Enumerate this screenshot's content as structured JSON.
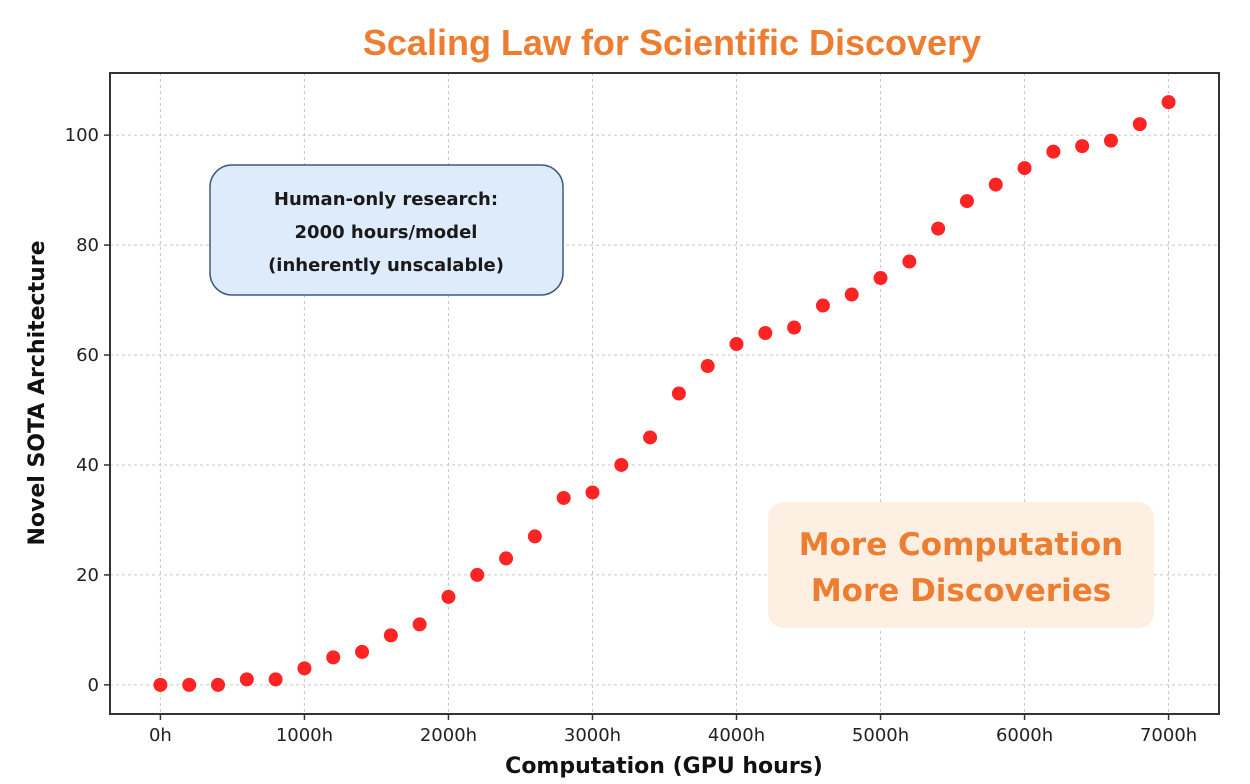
{
  "chart_data": {
    "type": "scatter",
    "title": "Scaling Law for Scientific Discovery",
    "xlabel": "Computation (GPU hours)",
    "ylabel": "Novel SOTA Architecture",
    "x_ticks": [
      0,
      1000,
      2000,
      3000,
      4000,
      5000,
      6000,
      7000
    ],
    "x_tick_labels": [
      "0h",
      "1000h",
      "2000h",
      "3000h",
      "4000h",
      "5000h",
      "6000h",
      "7000h"
    ],
    "y_ticks": [
      0,
      20,
      40,
      60,
      80,
      100
    ],
    "y_tick_labels": [
      "0",
      "20",
      "40",
      "60",
      "80",
      "100"
    ],
    "xlim": [
      -350,
      7350
    ],
    "ylim": [
      -5.3,
      111.3
    ],
    "grid": true,
    "marker_color": "#FF2424",
    "series": [
      {
        "name": "Novel SOTA Architecture",
        "x": [
          0,
          200,
          400,
          600,
          800,
          1000,
          1200,
          1400,
          1600,
          1800,
          2000,
          2200,
          2400,
          2600,
          2800,
          3000,
          3200,
          3400,
          3600,
          3800,
          4000,
          4200,
          4400,
          4600,
          4800,
          5000,
          5200,
          5400,
          5600,
          5800,
          6000,
          6200,
          6400,
          6600,
          6800,
          7000
        ],
        "y": [
          0,
          0,
          0,
          1,
          1,
          3,
          5,
          6,
          9,
          11,
          16,
          20,
          23,
          27,
          34,
          35,
          40,
          45,
          53,
          58,
          62,
          64,
          65,
          69,
          71,
          74,
          77,
          83,
          88,
          91,
          94,
          97,
          98,
          99,
          102,
          106
        ]
      }
    ],
    "annotations": [
      {
        "name": "human-only-box",
        "lines": [
          "Human-only research:",
          "2000 hours/model",
          "(inherently unscalable)"
        ],
        "fill": "#DDEBFA",
        "border": "#3D5A80",
        "text_color": "#1a1a1a",
        "placement": "upper-left"
      },
      {
        "name": "more-computation-box",
        "lines": [
          "More Computation",
          "More Discoveries"
        ],
        "fill": "#FDEFE2",
        "text_color": "#ED7D31",
        "placement": "lower-right"
      }
    ],
    "title_color": "#ED7D31"
  }
}
